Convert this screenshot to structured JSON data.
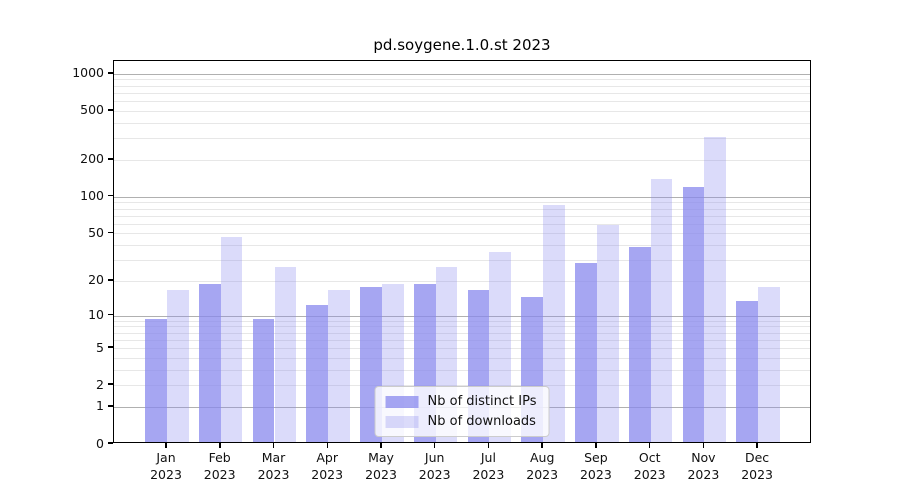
{
  "title": "pd.soygene.1.0.st 2023",
  "chart_data": {
    "type": "bar",
    "title": "pd.soygene.1.0.st 2023",
    "categories": [
      "Jan",
      "Feb",
      "Mar",
      "Apr",
      "May",
      "Jun",
      "Jul",
      "Aug",
      "Sep",
      "Oct",
      "Nov",
      "Dec"
    ],
    "x_year_label": "2023",
    "series": [
      {
        "name": "Nb of distinct IPs",
        "color": "#8888ee",
        "alpha": 0.75,
        "values": [
          9,
          18,
          9,
          12,
          17,
          18,
          16,
          14,
          27,
          37,
          115,
          13
        ]
      },
      {
        "name": "Nb of downloads",
        "color": "#8888ee",
        "alpha": 0.3,
        "values": [
          16,
          45,
          25,
          16,
          18,
          25,
          34,
          82,
          56,
          134,
          297,
          17
        ]
      }
    ],
    "y_axis": {
      "scale": "log10(1+y)",
      "tick_values": [
        0,
        1,
        2,
        5,
        10,
        20,
        50,
        100,
        200,
        500,
        1000
      ],
      "major_grid_values": [
        1,
        10,
        100,
        1000
      ],
      "ylim": [
        0,
        1270
      ]
    },
    "grid": {
      "horizontal": true,
      "minor_per_decade": [
        2,
        3,
        4,
        5,
        6,
        7,
        8,
        9
      ]
    },
    "legend_position": "bottom-center",
    "colors": {
      "bar_base": "#8888ee",
      "grid_major": "#b0b0b0",
      "grid_minor": "#e7e7e7",
      "axis": "#000000"
    }
  }
}
